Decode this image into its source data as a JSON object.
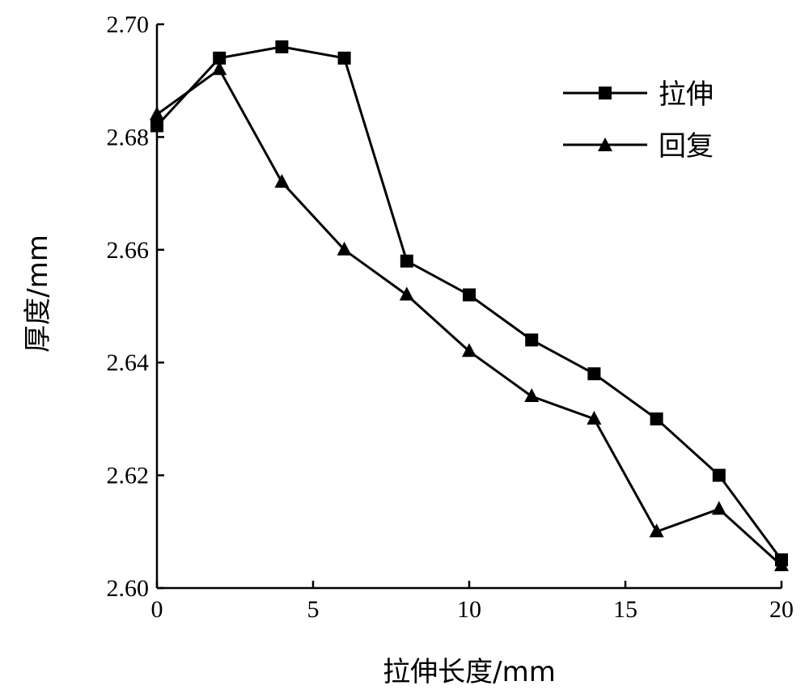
{
  "chart_data": {
    "type": "line",
    "xlabel": "拉伸长度/mm",
    "ylabel": "厚度/mm",
    "xlim": [
      0,
      20
    ],
    "ylim": [
      2.6,
      2.7
    ],
    "xticks": [
      "0",
      "5",
      "10",
      "15",
      "20"
    ],
    "yticks": [
      "2.60",
      "2.62",
      "2.64",
      "2.66",
      "2.68",
      "2.70"
    ],
    "grid": false,
    "legend_position": "top-right",
    "series": [
      {
        "name": "拉伸",
        "marker": "square",
        "x": [
          0,
          2,
          4,
          6,
          8,
          10,
          12,
          14,
          16,
          18,
          20
        ],
        "y": [
          2.682,
          2.694,
          2.696,
          2.694,
          2.658,
          2.652,
          2.644,
          2.638,
          2.63,
          2.62,
          2.605
        ]
      },
      {
        "name": "回复",
        "marker": "triangle",
        "x": [
          0,
          2,
          4,
          6,
          8,
          10,
          12,
          14,
          16,
          18,
          20
        ],
        "y": [
          2.684,
          2.692,
          2.672,
          2.66,
          2.652,
          2.642,
          2.634,
          2.63,
          2.61,
          2.614,
          2.604
        ]
      }
    ]
  }
}
